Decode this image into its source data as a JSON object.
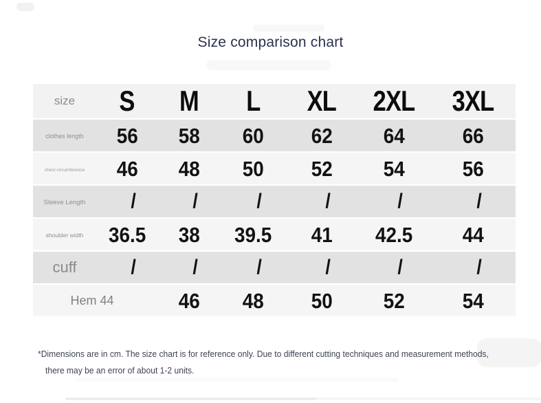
{
  "page": {
    "title": "Size comparison chart"
  },
  "table": {
    "header": {
      "label": "size",
      "columns": [
        "S",
        "M",
        "L",
        "XL",
        "2XL",
        "3XL"
      ]
    },
    "rows": [
      {
        "label": "clothes length",
        "values": [
          "56",
          "58",
          "60",
          "62",
          "64",
          "66"
        ]
      },
      {
        "label": "chest circumference",
        "values": [
          "46",
          "48",
          "50",
          "52",
          "54",
          "56"
        ]
      },
      {
        "label": "Sleeve Length",
        "values": [
          "/",
          "/",
          "/",
          "/",
          "/",
          "/"
        ]
      },
      {
        "label": "shoulder width",
        "values": [
          "36.5",
          "38",
          "39.5",
          "41",
          "42.5",
          "44"
        ]
      },
      {
        "label": "cuff",
        "values": [
          "/",
          "/",
          "/",
          "/",
          "/",
          "/"
        ]
      },
      {
        "label": "Hem 44",
        "values": [
          "",
          "46",
          "48",
          "50",
          "52",
          "54"
        ]
      }
    ]
  },
  "footnote": {
    "line1": "*Dimensions are in cm. The size chart is for reference only. Due to different cutting techniques and measurement methods,",
    "line2": "there may be an error of about 1-2 units."
  },
  "colors": {
    "title_text": "#2a3050",
    "value_text": "#121212",
    "label_text": "#8e8e8e",
    "header_bg": "#f2f2f2",
    "row_dark": "#e2e2e2",
    "row_light": "#f5f5f5",
    "footnote_text": "#3e4356"
  },
  "chart_data": {
    "type": "table",
    "title": "Size comparison chart",
    "columns": [
      "size",
      "S",
      "M",
      "L",
      "XL",
      "2XL",
      "3XL"
    ],
    "rows": [
      [
        "clothes length",
        "56",
        "58",
        "60",
        "62",
        "64",
        "66"
      ],
      [
        "chest circumference",
        "46",
        "48",
        "50",
        "52",
        "54",
        "56"
      ],
      [
        "Sleeve Length",
        "/",
        "/",
        "/",
        "/",
        "/",
        "/"
      ],
      [
        "shoulder width",
        "36.5",
        "38",
        "39.5",
        "41",
        "42.5",
        "44"
      ],
      [
        "cuff",
        "/",
        "/",
        "/",
        "/",
        "/",
        "/"
      ],
      [
        "Hem 44",
        "",
        "46",
        "48",
        "50",
        "52",
        "54"
      ]
    ],
    "notes": "*Dimensions are in cm. The size chart is for reference only. Due to different cutting techniques and measurement methods, there may be an error of about 1-2 units.",
    "units": "cm"
  }
}
